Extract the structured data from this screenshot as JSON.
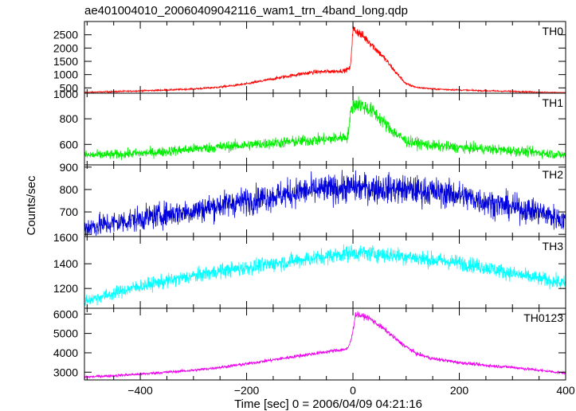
{
  "title": "ae401004010_20060409042116_wam1_trn_4band_long.qdp",
  "ylabel": "Counts/sec",
  "xlabel": "Time [sec] 0 = 2006/04/09 04:21:16",
  "chart_data": {
    "type": "line",
    "title": "ae401004010_20060409042116_wam1_trn_4band_long.qdp",
    "ylabel": "Counts/sec",
    "xlabel": "Time [sec] 0 = 2006/04/09 04:21:16",
    "xlim": [
      -505,
      400
    ],
    "xticks": [
      -400,
      -200,
      0,
      200,
      400
    ],
    "x_tick_labels": [
      "−400",
      "−200",
      "0",
      "200",
      "400"
    ],
    "grid": false,
    "panels": [
      {
        "name": "TH0",
        "color": "#ff0000",
        "ylim": [
          300,
          3000
        ],
        "yticks": [
          500,
          1000,
          1500,
          2000,
          2500
        ],
        "y_tick_labels": [
          "500",
          "1000",
          "1500",
          "2000",
          "2500"
        ],
        "x": [
          -505,
          -450,
          -400,
          -350,
          -300,
          -250,
          -200,
          -150,
          -100,
          -70,
          -40,
          -15,
          -5,
          0,
          10,
          30,
          60,
          80,
          100,
          120,
          150,
          200,
          250,
          300,
          350,
          400
        ],
        "y": [
          330,
          360,
          390,
          420,
          460,
          530,
          650,
          840,
          1020,
          1100,
          1120,
          1150,
          1250,
          2700,
          2600,
          2250,
          1600,
          1100,
          650,
          520,
          460,
          420,
          390,
          370,
          340,
          310
        ],
        "noise": 0.035
      },
      {
        "name": "TH1",
        "color": "#00ee00",
        "ylim": [
          440,
          1000
        ],
        "yticks": [
          600,
          800
        ],
        "y_tick_labels": [
          "600",
          "800"
        ],
        "top_tick_label": "1000",
        "x": [
          -505,
          -450,
          -400,
          -350,
          -300,
          -250,
          -200,
          -150,
          -100,
          -50,
          -10,
          -2,
          10,
          40,
          70,
          100,
          150,
          200,
          250,
          300,
          350,
          400
        ],
        "y": [
          515,
          520,
          530,
          545,
          565,
          580,
          595,
          610,
          625,
          640,
          660,
          900,
          920,
          850,
          720,
          625,
          590,
          575,
          565,
          550,
          535,
          515
        ],
        "noise": 0.035
      },
      {
        "name": "TH2",
        "color": "#0000dd",
        "ylim": [
          590,
          910
        ],
        "yticks": [
          600,
          700,
          800,
          900
        ],
        "y_tick_labels": [
          "",
          "700",
          "800",
          "900"
        ],
        "x": [
          -505,
          -450,
          -400,
          -350,
          -300,
          -250,
          -200,
          -150,
          -100,
          -50,
          0,
          50,
          100,
          150,
          200,
          250,
          300,
          350,
          400
        ],
        "y": [
          630,
          650,
          670,
          690,
          705,
          730,
          750,
          770,
          790,
          800,
          810,
          805,
          800,
          790,
          775,
          745,
          720,
          700,
          660
        ],
        "noise": 0.04
      },
      {
        "name": "TH3",
        "color": "#00ffff",
        "ylim": [
          1040,
          1620
        ],
        "yticks": [
          1200,
          1400
        ],
        "y_tick_labels": [
          "1200",
          "1400"
        ],
        "top_tick_label": "1600",
        "x": [
          -505,
          -450,
          -400,
          -350,
          -300,
          -250,
          -200,
          -150,
          -100,
          -50,
          0,
          50,
          100,
          150,
          200,
          250,
          300,
          350,
          400
        ],
        "y": [
          1100,
          1160,
          1220,
          1260,
          1300,
          1340,
          1370,
          1400,
          1430,
          1460,
          1490,
          1480,
          1460,
          1430,
          1410,
          1370,
          1320,
          1280,
          1240
        ],
        "noise": 0.022
      },
      {
        "name": "TH0123",
        "color": "#ee00ee",
        "ylim": [
          2600,
          6300
        ],
        "yticks": [
          3000,
          4000,
          5000,
          6000
        ],
        "y_tick_labels": [
          "3000",
          "4000",
          "5000",
          "6000"
        ],
        "x": [
          -505,
          -450,
          -400,
          -350,
          -300,
          -250,
          -200,
          -150,
          -100,
          -50,
          -10,
          -3,
          5,
          30,
          60,
          90,
          120,
          150,
          200,
          250,
          300,
          350,
          400
        ],
        "y": [
          2750,
          2820,
          2900,
          3000,
          3100,
          3250,
          3430,
          3640,
          3850,
          4050,
          4200,
          4700,
          6000,
          5800,
          5200,
          4500,
          3950,
          3700,
          3500,
          3350,
          3250,
          3100,
          2950
        ],
        "noise": 0.012
      }
    ]
  }
}
